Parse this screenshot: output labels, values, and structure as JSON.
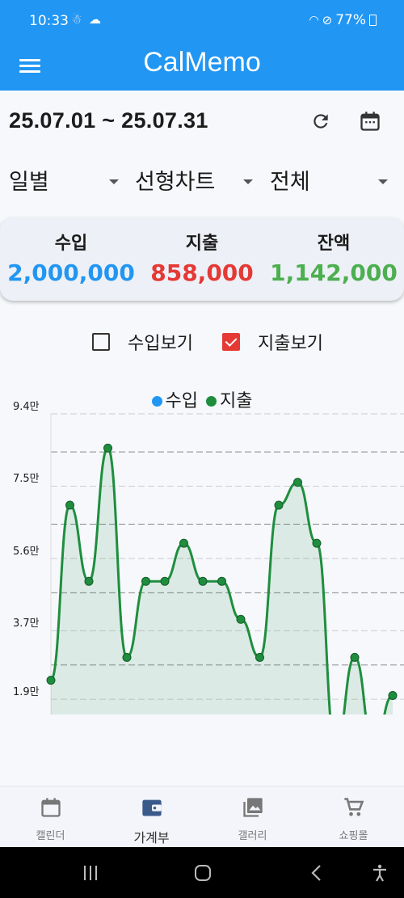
{
  "status": {
    "time": "10:33",
    "battery": "77%"
  },
  "appbar": {
    "title": "CalMemo"
  },
  "date_range": "25.07.01 ~ 25.07.31",
  "dropdowns": {
    "period": "일별",
    "chart_type": "선형차트",
    "filter": "전체"
  },
  "summary": {
    "income_label": "수입",
    "income_value": "2,000,000",
    "income_color": "#2196f3",
    "expense_label": "지출",
    "expense_value": "858,000",
    "expense_color": "#e53935",
    "balance_label": "잔액",
    "balance_value": "1,142,000",
    "balance_color": "#4caf50"
  },
  "toggles": {
    "show_income": "수입보기",
    "show_income_checked": false,
    "show_expense": "지출보기",
    "show_expense_checked": true
  },
  "chart_data": {
    "type": "line",
    "title": "",
    "legend": [
      {
        "name": "수입",
        "color": "#2196f3"
      },
      {
        "name": "지출",
        "color": "#1e8e3e"
      }
    ],
    "y_tick_labels": [
      "9.4만",
      "7.5만",
      "5.6만",
      "3.7만",
      "1.9만"
    ],
    "ylim": [
      15000,
      94000
    ],
    "series": [
      {
        "name": "지출",
        "values": [
          24000,
          70000,
          50000,
          85000,
          30000,
          50000,
          50000,
          60000,
          50000,
          50000,
          40000,
          30000,
          70000,
          76000,
          60000,
          0,
          30000,
          0,
          20000
        ]
      }
    ]
  },
  "nav": [
    {
      "label": "캘린더",
      "icon": "calendar-icon",
      "active": false
    },
    {
      "label": "가계부",
      "icon": "wallet-icon",
      "active": true
    },
    {
      "label": "갤러리",
      "icon": "gallery-icon",
      "active": false
    },
    {
      "label": "쇼핑몰",
      "icon": "cart-icon",
      "active": false
    }
  ]
}
